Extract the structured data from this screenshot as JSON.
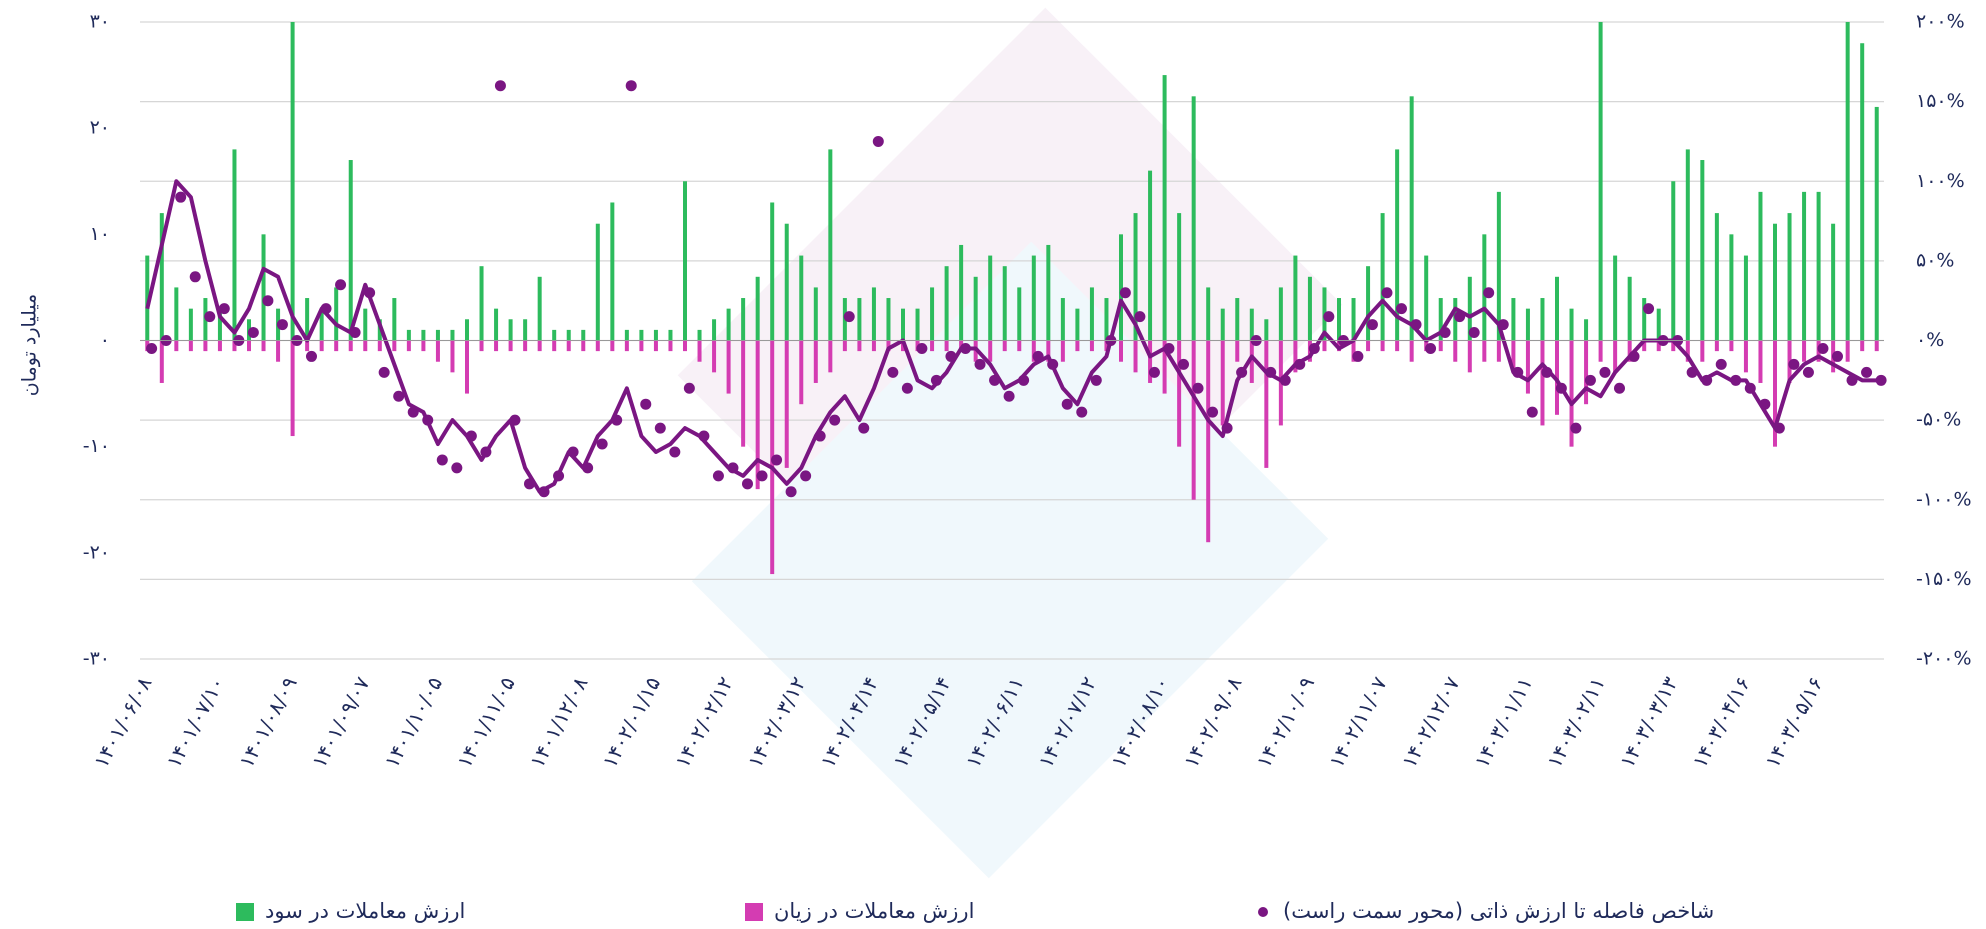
{
  "chart_data": {
    "type": "combo",
    "ylabel": "میلیارد تومان",
    "ylim": [
      -30,
      30
    ],
    "yticks": [
      {
        "value": 30,
        "label": "۳۰"
      },
      {
        "value": 20,
        "label": "۲۰"
      },
      {
        "value": 10,
        "label": "۱۰"
      },
      {
        "value": 0,
        "label": "۰"
      },
      {
        "value": -10,
        "label": "-۱۰"
      },
      {
        "value": -20,
        "label": "-۲۰"
      },
      {
        "value": -30,
        "label": "-۳۰"
      }
    ],
    "y2lim": [
      -200,
      200
    ],
    "y2ticks": [
      {
        "value": 200,
        "label": "۲۰۰%"
      },
      {
        "value": 150,
        "label": "۱۵۰%"
      },
      {
        "value": 100,
        "label": "۱۰۰%"
      },
      {
        "value": 50,
        "label": "۵۰%"
      },
      {
        "value": 0,
        "label": "۰%"
      },
      {
        "value": -50,
        "label": "-۵۰%"
      },
      {
        "value": -100,
        "label": "-۱۰۰%"
      },
      {
        "value": -150,
        "label": "-۱۵۰%"
      },
      {
        "value": -200,
        "label": "-۲۰۰%"
      }
    ],
    "grid": true,
    "categories": [
      "۱۴۰۱/۰۶/۰۸",
      null,
      null,
      null,
      null,
      "۱۴۰۱/۰۷/۱۰",
      null,
      null,
      null,
      null,
      "۱۴۰۱/۰۸/۰۹",
      null,
      null,
      null,
      null,
      "۱۴۰۱/۰۹/۰۷",
      null,
      null,
      null,
      null,
      "۱۴۰۱/۱۰/۰۵",
      null,
      null,
      null,
      null,
      "۱۴۰۱/۱۱/۰۵",
      null,
      null,
      null,
      null,
      "۱۴۰۱/۱۲/۰۸",
      null,
      null,
      null,
      null,
      "۱۴۰۲/۰۱/۱۵",
      null,
      null,
      null,
      null,
      "۱۴۰۲/۰۲/۱۲",
      null,
      null,
      null,
      null,
      "۱۴۰۲/۰۳/۱۲",
      null,
      null,
      null,
      null,
      "۱۴۰۲/۰۴/۱۴",
      null,
      null,
      null,
      null,
      "۱۴۰۲/۰۵/۱۴",
      null,
      null,
      null,
      null,
      "۱۴۰۲/۰۶/۱۱",
      null,
      null,
      null,
      null,
      "۱۴۰۲/۰۷/۱۲",
      null,
      null,
      null,
      null,
      "۱۴۰۲/۰۸/۱۰",
      null,
      null,
      null,
      null,
      "۱۴۰۲/۰۹/۰۸",
      null,
      null,
      null,
      null,
      "۱۴۰۲/۱۰/۰۹",
      null,
      null,
      null,
      null,
      "۱۴۰۲/۱۱/۰۷",
      null,
      null,
      null,
      null,
      "۱۴۰۲/۱۲/۰۷",
      null,
      null,
      null,
      null,
      "۱۴۰۳/۰۱/۱۱",
      null,
      null,
      null,
      null,
      "۱۴۰۳/۰۲/۱۱",
      null,
      null,
      null,
      null,
      "۱۴۰۳/۰۳/۱۳",
      null,
      null,
      null,
      null,
      "۱۴۰۳/۰۴/۱۶",
      null,
      null,
      null,
      null,
      "۱۴۰۳/۰۵/۱۶",
      null,
      null,
      null,
      null
    ],
    "series": [
      {
        "name": "ارزش معاملات در سود",
        "type": "bar",
        "color": "#2dbb5d",
        "values": [
          8,
          12,
          5,
          3,
          4,
          3,
          18,
          2,
          10,
          3,
          30,
          4,
          3,
          5,
          17,
          3,
          2,
          4,
          1,
          1,
          1,
          1,
          2,
          7,
          3,
          2,
          2,
          6,
          1,
          1,
          1,
          11,
          13,
          1,
          1,
          1,
          1,
          15,
          1,
          2,
          3,
          4,
          6,
          13,
          11,
          8,
          5,
          18,
          4,
          4,
          5,
          4,
          3,
          3,
          5,
          7,
          9,
          6,
          8,
          7,
          5,
          8,
          9,
          4,
          3,
          5,
          4,
          10,
          12,
          16,
          25,
          12,
          23,
          5,
          3,
          4,
          3,
          2,
          5,
          8,
          6,
          5,
          4,
          4,
          7,
          12,
          18,
          23,
          8,
          4,
          4,
          6,
          10,
          14,
          4,
          3,
          4,
          6,
          3,
          2,
          30,
          8,
          6,
          4,
          3,
          15,
          18,
          17,
          12,
          10,
          8,
          14,
          11,
          12,
          14,
          14,
          11,
          30,
          28,
          22
        ]
      },
      {
        "name": "ارزش معاملات در زیان",
        "type": "bar",
        "color": "#d43cb2",
        "values": [
          -1,
          -4,
          -1,
          -1,
          -1,
          -1,
          -1,
          -1,
          -1,
          -2,
          -9,
          -1,
          -1,
          -1,
          -1,
          -1,
          -1,
          -1,
          -1,
          -1,
          -2,
          -3,
          -5,
          -1,
          -1,
          -1,
          -1,
          -1,
          -1,
          -1,
          -1,
          -1,
          -1,
          -1,
          -1,
          -1,
          -1,
          -1,
          -2,
          -3,
          -5,
          -10,
          -14,
          -22,
          -12,
          -6,
          -4,
          -3,
          -1,
          -1,
          -1,
          -1,
          -1,
          -1,
          -1,
          -1,
          -1,
          -2,
          -2,
          -1,
          -1,
          -2,
          -2,
          -2,
          -1,
          -1,
          -1,
          -2,
          -3,
          -4,
          -5,
          -10,
          -15,
          -19,
          -8,
          -2,
          -4,
          -12,
          -8,
          -3,
          -2,
          -1,
          -1,
          -2,
          -1,
          -1,
          -1,
          -2,
          -1,
          -1,
          -2,
          -3,
          -2,
          -2,
          -3,
          -5,
          -8,
          -7,
          -10,
          -6,
          -2,
          -3,
          -2,
          -1,
          -1,
          -1,
          -2,
          -2,
          -1,
          -1,
          -3,
          -4,
          -10,
          -4,
          -2,
          -2,
          -3,
          -2,
          -1,
          -1
        ]
      },
      {
        "name": "شاخص فاصله تا ارزش ذاتی (محور سمت راست)",
        "type": "scatter",
        "axis": "y2",
        "color": "#7a1682",
        "values": [
          -5,
          0,
          90,
          40,
          15,
          20,
          0,
          5,
          25,
          10,
          0,
          -10,
          20,
          35,
          5,
          30,
          -20,
          -35,
          -45,
          -50,
          -75,
          -80,
          -60,
          -70,
          160,
          -50,
          -90,
          -95,
          -85,
          -70,
          -80,
          -65,
          -50,
          160,
          -40,
          -55,
          -70,
          -30,
          -60,
          -85,
          -80,
          -90,
          -85,
          -75,
          -95,
          -85,
          -60,
          -50,
          15,
          -55,
          125,
          -20,
          -30,
          -5,
          -25,
          -10,
          -5,
          -15,
          -25,
          -35,
          -25,
          -10,
          -15,
          -40,
          -45,
          -25,
          0,
          30,
          15,
          -20,
          -5,
          -15,
          -30,
          -45,
          -55,
          -20,
          0,
          -20,
          -25,
          -15,
          -5,
          15,
          0,
          -10,
          10,
          30,
          20,
          10,
          -5,
          5,
          15,
          5,
          30,
          10,
          -20,
          -45,
          -20,
          -30,
          -55,
          -25,
          -20,
          -30,
          -10,
          20,
          0,
          0,
          -20,
          -25,
          -15,
          -25,
          -30,
          -40,
          -55,
          -15,
          -20,
          -5,
          -10,
          -25,
          -20,
          -25
        ]
      },
      {
        "type": "line",
        "axis": "y2",
        "color": "#7a1682",
        "values": [
          20,
          60,
          100,
          90,
          50,
          15,
          5,
          20,
          45,
          40,
          15,
          0,
          20,
          10,
          5,
          35,
          10,
          -15,
          -40,
          -45,
          -65,
          -50,
          -60,
          -75,
          -60,
          -50,
          -80,
          -95,
          -90,
          -70,
          -80,
          -60,
          -50,
          -30,
          -60,
          -70,
          -65,
          -55,
          -60,
          -70,
          -80,
          -85,
          -75,
          -80,
          -90,
          -80,
          -60,
          -45,
          -35,
          -50,
          -30,
          -5,
          0,
          -25,
          -30,
          -20,
          -5,
          -5,
          -15,
          -30,
          -25,
          -15,
          -10,
          -30,
          -40,
          -20,
          -10,
          25,
          10,
          -10,
          -5,
          -20,
          -35,
          -50,
          -60,
          -25,
          -10,
          -20,
          -25,
          -15,
          -10,
          5,
          -5,
          0,
          15,
          25,
          15,
          10,
          0,
          5,
          20,
          15,
          20,
          10,
          -20,
          -25,
          -15,
          -25,
          -40,
          -30,
          -35,
          -20,
          -10,
          0,
          0,
          0,
          -10,
          -25,
          -20,
          -25,
          -25,
          -40,
          -55,
          -25,
          -15,
          -10,
          -15,
          -20,
          -25,
          -25
        ]
      }
    ]
  }
}
